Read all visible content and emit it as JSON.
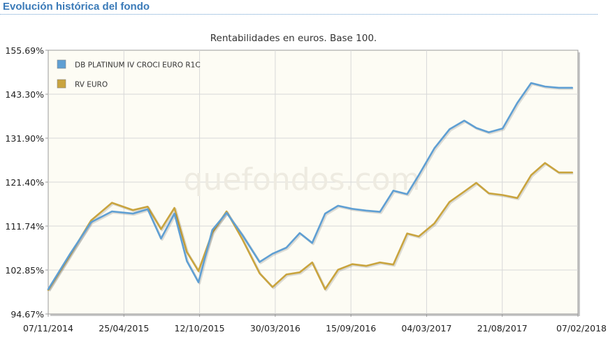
{
  "header": {
    "title": "Evolución histórica del fondo"
  },
  "watermark": "quefondos.com",
  "colors": {
    "fund": "#5f9fd3",
    "index": "#c9a43e",
    "plot_bg": "#fdfcf4",
    "grid": "#d8d8d8"
  },
  "chart_data": {
    "type": "line",
    "title": "Rentabilidades en euros. Base 100.",
    "xlabel": "",
    "ylabel": "",
    "ylim": [
      94.67,
      155.69
    ],
    "xlim": [
      "2014-11-07",
      "2018-02-07"
    ],
    "legend_position": "top-left",
    "grid": true,
    "x_ticks": [
      "07/11/2014",
      "25/04/2015",
      "12/10/2015",
      "30/03/2016",
      "15/09/2016",
      "04/03/2017",
      "21/08/2017",
      "07/02/2018"
    ],
    "y_ticks": [
      "155.69%",
      "143.30%",
      "131.90%",
      "121.40%",
      "111.74%",
      "102.85%",
      "94.67%"
    ],
    "x": [
      "2014-11-07",
      "2014-12-25",
      "2015-02-11",
      "2015-03-30",
      "2015-05-16",
      "2015-06-18",
      "2015-07-18",
      "2015-08-17",
      "2015-09-14",
      "2015-10-10",
      "2015-11-10",
      "2015-12-12",
      "2016-01-16",
      "2016-02-24",
      "2016-03-24",
      "2016-04-24",
      "2016-05-24",
      "2016-06-21",
      "2016-07-20",
      "2016-08-18",
      "2016-09-19",
      "2016-10-20",
      "2016-11-20",
      "2016-12-20",
      "2017-01-20",
      "2017-02-15",
      "2017-03-22",
      "2017-04-25",
      "2017-05-28",
      "2017-06-24",
      "2017-07-22",
      "2017-08-22",
      "2017-09-24",
      "2017-10-25",
      "2017-11-25",
      "2017-12-26",
      "2018-01-25"
    ],
    "series": [
      {
        "name": "DB PLATINUM IV CROCI EURO R1C",
        "color": "#5f9fd3",
        "values": [
          100.4,
          108.4,
          115.9,
          118.4,
          117.9,
          118.9,
          112.1,
          117.9,
          106.9,
          102.0,
          114.1,
          118.1,
          113.0,
          106.7,
          108.6,
          110.0,
          113.4,
          111.1,
          117.9,
          119.7,
          119.0,
          118.6,
          118.3,
          123.2,
          122.4,
          126.8,
          133.0,
          137.4,
          139.4,
          137.7,
          136.7,
          137.6,
          143.5,
          148.1,
          147.3,
          147.0,
          147.0
        ]
      },
      {
        "name": "RV EURO",
        "color": "#c9a43e",
        "values": [
          100.2,
          108.1,
          116.3,
          120.4,
          118.7,
          119.5,
          114.3,
          119.2,
          109.0,
          104.6,
          113.5,
          118.4,
          112.0,
          104.1,
          100.9,
          103.8,
          104.3,
          106.6,
          100.4,
          104.9,
          106.2,
          105.8,
          106.6,
          106.1,
          113.3,
          112.6,
          115.6,
          120.6,
          123.0,
          125.0,
          122.6,
          122.2,
          121.5,
          126.8,
          129.6,
          127.4,
          127.4
        ]
      }
    ]
  }
}
